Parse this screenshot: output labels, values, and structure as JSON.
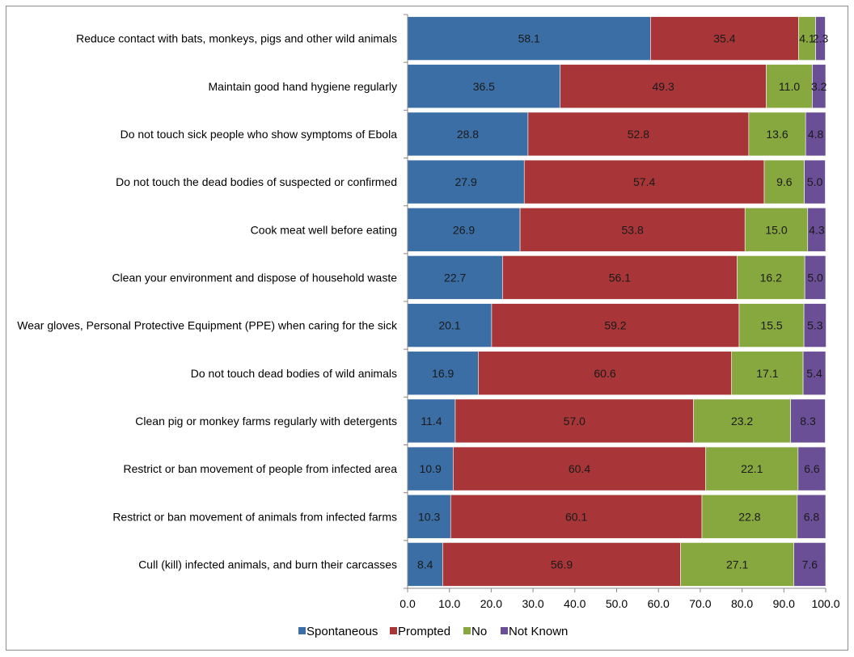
{
  "chart_data": {
    "type": "bar",
    "orientation": "horizontal",
    "stacked": true,
    "title": "",
    "xlabel": "",
    "ylabel": "",
    "xlim": [
      0,
      100
    ],
    "x_ticks": [
      "0.0",
      "10.0",
      "20.0",
      "30.0",
      "40.0",
      "50.0",
      "60.0",
      "70.0",
      "80.0",
      "90.0",
      "100.0"
    ],
    "grid": false,
    "legend_position": "bottom",
    "categories": [
      "Reduce contact with bats, monkeys, pigs and other wild animals",
      "Maintain good hand hygiene regularly",
      "Do not touch sick people who show symptoms of Ebola",
      "Do not touch the dead bodies of suspected or confirmed",
      "Cook meat well before eating",
      "Clean your environment and dispose of household waste",
      "Wear gloves, Personal Protective Equipment (PPE) when caring for the sick",
      "Do not touch dead bodies of wild animals",
      "Clean pig or monkey farms regularly with detergents",
      "Restrict or ban movement of people from infected area",
      "Restrict or ban movement of animals from infected farms",
      "Cull (kill) infected animals, and burn their carcasses"
    ],
    "series": [
      {
        "name": "Spontaneous",
        "color": "#3a6ea5",
        "values": [
          58.1,
          36.5,
          28.8,
          27.9,
          26.9,
          22.7,
          20.1,
          16.9,
          11.4,
          10.9,
          10.3,
          8.4
        ]
      },
      {
        "name": "Prompted",
        "color": "#a83538",
        "values": [
          35.4,
          49.3,
          52.8,
          57.4,
          53.8,
          56.1,
          59.2,
          60.6,
          57.0,
          60.4,
          60.1,
          56.9
        ]
      },
      {
        "name": "No",
        "color": "#86a83f",
        "values": [
          4.1,
          11.0,
          13.6,
          9.6,
          15.0,
          16.2,
          15.5,
          17.1,
          23.2,
          22.1,
          22.8,
          27.1
        ]
      },
      {
        "name": "Not Known",
        "color": "#6b4f96",
        "values": [
          2.3,
          3.2,
          4.8,
          5.0,
          4.3,
          5.0,
          5.3,
          5.4,
          8.3,
          6.6,
          6.8,
          7.6
        ]
      }
    ]
  }
}
